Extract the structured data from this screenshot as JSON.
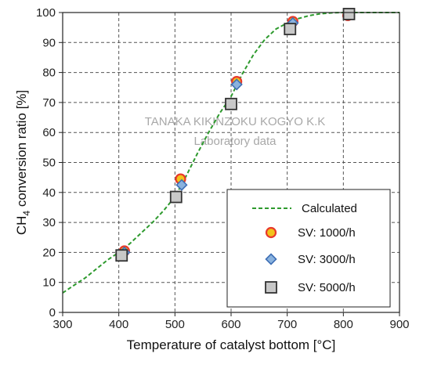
{
  "chart_data": {
    "type": "scatter",
    "xlabel": "Temperature of catalyst bottom [°C]",
    "ylabel_main": "CH",
    "ylabel_sub": "4",
    "ylabel_rest": " conversion ratio [%]",
    "xlim": [
      300,
      900
    ],
    "ylim": [
      0,
      100
    ],
    "xticks": [
      300,
      400,
      500,
      600,
      700,
      800,
      900
    ],
    "yticks": [
      0,
      10,
      20,
      30,
      40,
      50,
      60,
      70,
      80,
      90,
      100
    ],
    "grid": true,
    "watermark": [
      "TANAKA KIKINZOKU KOGYO K.K",
      "Laboratory data"
    ],
    "legend_position": "bottom-right",
    "series": [
      {
        "name": "Calculated",
        "kind": "line",
        "color": "#2e9a2e",
        "x": [
          300,
          320,
          340,
          360,
          380,
          400,
          420,
          440,
          460,
          480,
          500,
          520,
          540,
          560,
          580,
          600,
          620,
          640,
          660,
          680,
          700,
          720,
          740,
          760,
          780,
          800,
          820,
          840,
          860,
          880,
          900
        ],
        "y": [
          6.5,
          9,
          11.5,
          14.5,
          17.5,
          20,
          23,
          26.5,
          30,
          34,
          38.5,
          45.5,
          53,
          60,
          66.5,
          72,
          79.5,
          86,
          91,
          94.5,
          96.5,
          98,
          99,
          99.6,
          99.9,
          100,
          100,
          100,
          100,
          100,
          100
        ]
      },
      {
        "name": "SV: 1000/h",
        "kind": "circle",
        "fill": "#f2c21b",
        "stroke": "#e8392b",
        "x": [
          410,
          510,
          610,
          710,
          808
        ],
        "y": [
          20.5,
          44.5,
          77,
          97,
          99
        ]
      },
      {
        "name": "SV: 3000/h",
        "kind": "diamond",
        "fill": "#8ab2de",
        "stroke": "#3f6fb5",
        "x": [
          410,
          512,
          610,
          710,
          810
        ],
        "y": [
          20,
          42.5,
          76,
          96.5,
          99.5
        ]
      },
      {
        "name": "SV: 5000/h",
        "kind": "square",
        "fill": "#c8c8c8",
        "stroke": "#333333",
        "x": [
          405,
          502,
          600,
          705,
          810
        ],
        "y": [
          19,
          38.5,
          69.5,
          94.5,
          99.5
        ]
      }
    ]
  }
}
